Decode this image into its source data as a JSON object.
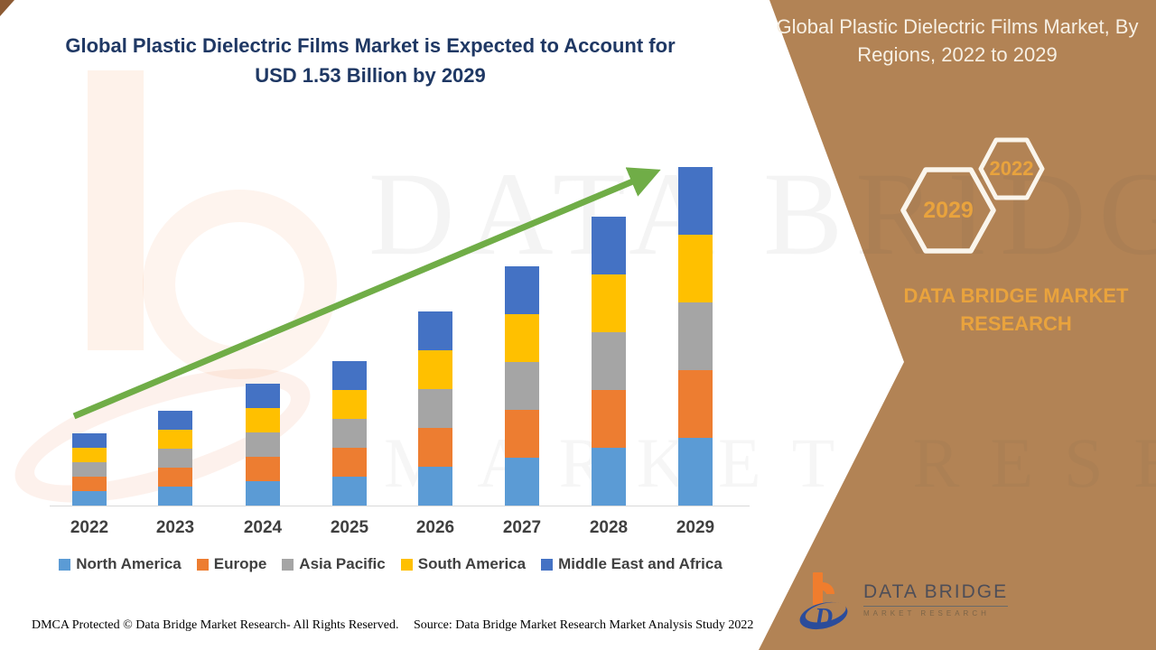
{
  "title": {
    "line1": "Global Plastic Dielectric Films Market is Expected to Account for",
    "line2": "USD 1.53 Billion by 2029"
  },
  "side_panel": {
    "title": "Global Plastic Dielectric Films Market, By Regions, 2022 to 2029",
    "hexagons": {
      "front_year": "2029",
      "back_year": "2022"
    },
    "brand_line": "DATA BRIDGE MARKET RESEARCH",
    "colors": {
      "panel_brown": "#B28355",
      "gold": "#E9A33D",
      "cream": "#F7F0E4"
    }
  },
  "chart_data": {
    "type": "bar",
    "stacked": true,
    "title": "Global Plastic Dielectric Films Market, By Regions, 2022 to 2029",
    "unit": "USD Billion",
    "categories": [
      "2022",
      "2023",
      "2024",
      "2025",
      "2026",
      "2027",
      "2028",
      "2029"
    ],
    "series": [
      {
        "name": "North America",
        "color": "#5B9BD5",
        "values": [
          0.065,
          0.087,
          0.109,
          0.131,
          0.175,
          0.218,
          0.262,
          0.306
        ]
      },
      {
        "name": "Europe",
        "color": "#ED7D31",
        "values": [
          0.065,
          0.087,
          0.109,
          0.131,
          0.175,
          0.218,
          0.262,
          0.306
        ]
      },
      {
        "name": "Asia Pacific",
        "color": "#A5A5A5",
        "values": [
          0.065,
          0.087,
          0.109,
          0.131,
          0.175,
          0.218,
          0.262,
          0.306
        ]
      },
      {
        "name": "South America",
        "color": "#FFC000",
        "values": [
          0.065,
          0.087,
          0.109,
          0.131,
          0.175,
          0.218,
          0.262,
          0.306
        ]
      },
      {
        "name": "Middle East and Africa",
        "color": "#4472C4",
        "values": [
          0.065,
          0.087,
          0.109,
          0.131,
          0.175,
          0.218,
          0.262,
          0.306
        ]
      }
    ],
    "totals": [
      0.33,
      0.44,
      0.55,
      0.66,
      0.87,
      1.09,
      1.31,
      1.53
    ],
    "ylim": [
      0,
      1.6
    ],
    "gridlines": false,
    "legend_position": "bottom",
    "trend_arrow": {
      "present": true,
      "color": "#70AD47",
      "direction": "up-right"
    }
  },
  "watermark": {
    "line1": "DATA BRIDGE",
    "line2": "MARKET RESEARCH"
  },
  "footer": {
    "dmca": "DMCA Protected © Data Bridge Market Research- All Rights Reserved.",
    "source": "Source: Data Bridge Market Research Market Analysis Study 2022"
  },
  "logo": {
    "name": "DATA BRIDGE",
    "subtext": "MARKET RESEARCH"
  }
}
